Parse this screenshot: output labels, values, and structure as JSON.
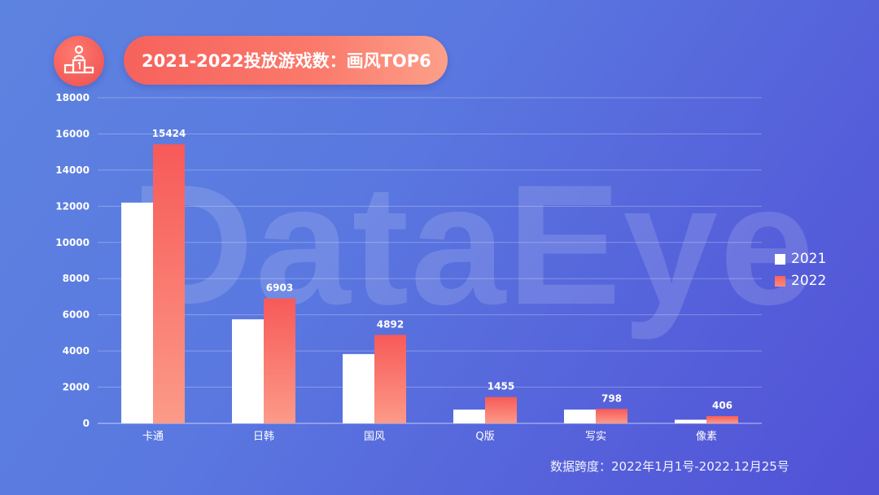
{
  "title": "2021-2022投放游戏数：画风TOP6",
  "watermark": "DataEye",
  "footnote": "数据跨度：2022年1月1号-2022.12月25号",
  "icon": "podium-icon",
  "colors": {
    "series_2021": "#ffffff",
    "series_2022": "#f7625d",
    "accent": "#f6625c"
  },
  "chart_data": {
    "type": "bar",
    "title": "2021-2022投放游戏数：画风TOP6",
    "categories": [
      "卡通",
      "日韩",
      "国风",
      "Q版",
      "写实",
      "像素"
    ],
    "series": [
      {
        "name": "2021",
        "values": [
          12200,
          5750,
          3830,
          760,
          760,
          200
        ],
        "labels": [
          "",
          "",
          "",
          "",
          "",
          ""
        ]
      },
      {
        "name": "2022",
        "values": [
          15424,
          6903,
          4892,
          1455,
          798,
          406
        ],
        "labels": [
          "15424",
          "6903",
          "4892",
          "1455",
          "798",
          "406"
        ]
      }
    ],
    "ylim": [
      0,
      18000
    ],
    "yticks": [
      "0",
      "2000",
      "4000",
      "6000",
      "8000",
      "10000",
      "12000",
      "14000",
      "16000",
      "18000"
    ],
    "grid": true,
    "legend_position": "right"
  }
}
